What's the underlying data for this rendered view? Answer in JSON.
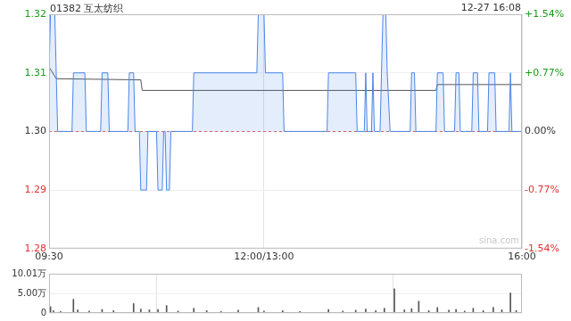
{
  "chart_data": [
    {
      "type": "line",
      "title": "01382 互太纺织",
      "subtitle": "12-27 16:08",
      "annotations": [
        "sina.com"
      ],
      "xlim": [
        0,
        330
      ],
      "xticks": [
        {
          "value": 0,
          "label": "09:30"
        },
        {
          "value": 150,
          "label": "12:00/13:00"
        },
        {
          "value": 330,
          "label": "16:00"
        }
      ],
      "ylim": [
        1.28,
        1.32
      ],
      "yticks": [
        1.28,
        1.29,
        {
          "value": 1.3,
          "label": "1.30"
        },
        1.31,
        1.32
      ],
      "y2lim": [
        -1.54,
        1.54
      ],
      "y2ticks": [
        {
          "value": -1.54,
          "label": "-1.54%"
        },
        {
          "value": -0.77,
          "label": "-0.77%"
        },
        {
          "value": 0,
          "label": "0.00%"
        },
        {
          "value": 0.77,
          "label": "+0.77%"
        },
        {
          "value": 1.54,
          "label": "+1.54%"
        }
      ],
      "grid": true,
      "series": [
        {
          "color": "#4a86e8",
          "baseline": 1.3,
          "x": [
            0,
            1,
            4,
            5,
            6,
            16,
            17,
            25,
            26,
            36,
            37,
            41,
            42,
            55,
            56,
            59,
            60,
            63,
            64,
            68,
            69,
            75,
            76,
            79,
            80,
            81,
            82,
            84,
            85,
            100,
            101,
            145,
            146,
            150,
            151,
            163,
            164,
            194,
            195,
            214,
            215,
            220,
            221,
            222,
            225,
            226,
            227,
            231,
            232,
            233,
            235,
            236,
            238,
            252,
            253,
            255,
            256,
            270,
            271,
            275,
            276,
            283,
            284,
            286,
            287,
            295,
            296,
            299,
            300,
            306,
            307,
            311,
            312,
            321,
            322,
            323,
            330
          ],
          "values": [
            1.31,
            1.32,
            1.32,
            1.31,
            1.3,
            1.3,
            1.31,
            1.31,
            1.3,
            1.3,
            1.31,
            1.31,
            1.3,
            1.3,
            1.31,
            1.31,
            1.3,
            1.3,
            1.29,
            1.29,
            1.3,
            1.3,
            1.29,
            1.29,
            1.3,
            1.3,
            1.29,
            1.29,
            1.3,
            1.3,
            1.31,
            1.31,
            1.32,
            1.32,
            1.31,
            1.31,
            1.3,
            1.3,
            1.31,
            1.31,
            1.3,
            1.3,
            1.31,
            1.3,
            1.3,
            1.31,
            1.3,
            1.3,
            1.31,
            1.32,
            1.32,
            1.31,
            1.3,
            1.3,
            1.31,
            1.31,
            1.3,
            1.3,
            1.31,
            1.31,
            1.3,
            1.3,
            1.31,
            1.31,
            1.3,
            1.3,
            1.31,
            1.31,
            1.3,
            1.3,
            1.31,
            1.31,
            1.3,
            1.3,
            1.31,
            1.3,
            1.3
          ]
        },
        {
          "color": "#555555",
          "x": [
            0,
            5,
            64,
            65,
            270,
            271,
            330
          ],
          "values": [
            1.311,
            1.309,
            1.3088,
            1.307,
            1.307,
            1.308,
            1.308
          ]
        }
      ]
    },
    {
      "type": "bar",
      "xlim": [
        0,
        330
      ],
      "ylim": [
        0,
        100100
      ],
      "yticks": [
        0,
        {
          "value": 50000,
          "label": "5.00万"
        },
        {
          "value": 100100,
          "label": "10.01万"
        }
      ],
      "tick_labels": "y",
      "grid": true,
      "color": "#555555",
      "x": [
        0,
        1,
        3,
        8,
        17,
        20,
        28,
        37,
        45,
        59,
        64,
        70,
        76,
        82,
        90,
        101,
        110,
        120,
        132,
        146,
        150,
        163,
        175,
        195,
        205,
        214,
        221,
        228,
        234,
        241,
        248,
        253,
        258,
        265,
        271,
        279,
        284,
        290,
        296,
        303,
        310,
        316,
        322,
        326,
        330
      ],
      "values": [
        12000,
        16000,
        6000,
        4000,
        35000,
        8000,
        5000,
        9000,
        6000,
        24000,
        10000,
        8000,
        9000,
        19000,
        5000,
        12000,
        6000,
        4000,
        7000,
        14000,
        5000,
        6000,
        4000,
        9000,
        5000,
        7000,
        10000,
        6000,
        12000,
        62000,
        8000,
        11000,
        30000,
        6000,
        14000,
        7000,
        9000,
        5000,
        12000,
        6000,
        14000,
        8000,
        51000,
        6000,
        16000
      ]
    }
  ]
}
